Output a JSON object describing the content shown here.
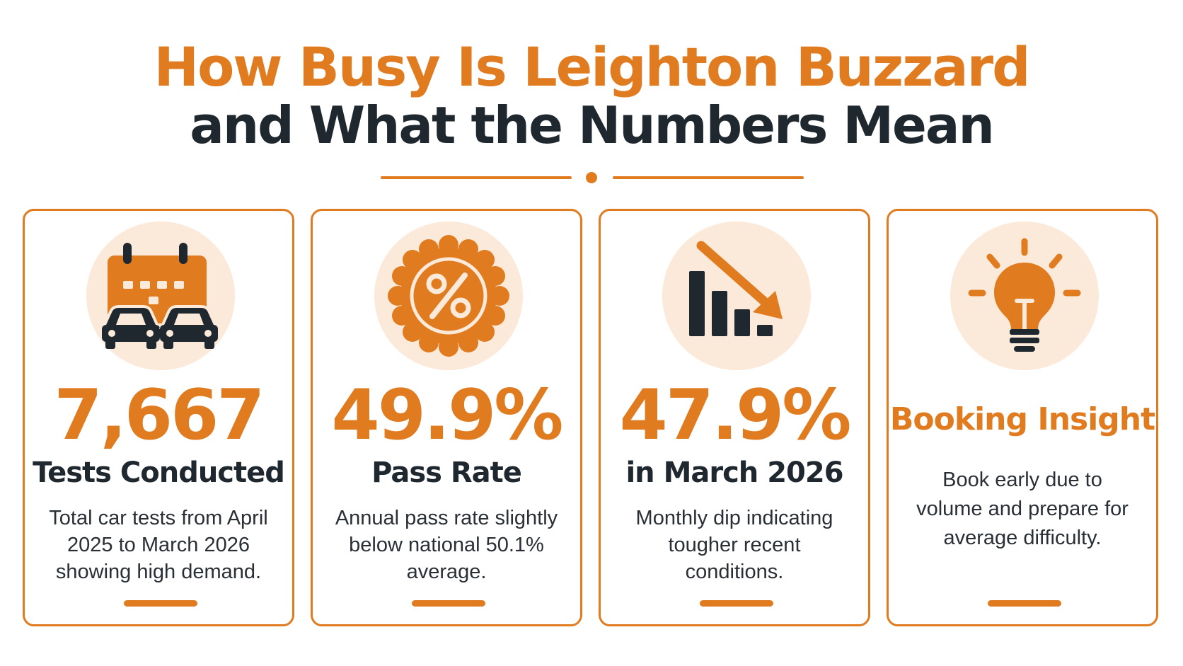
{
  "header": {
    "title_line1": "How Busy Is Leighton Buzzard",
    "title_line2": "and What the Numbers Mean"
  },
  "colors": {
    "accent": "#e07b1f",
    "dark": "#1f272f",
    "icon_bg": "#fbe9da"
  },
  "cards": [
    {
      "icon": "calendar-cars-icon",
      "value": "7,667",
      "label": "Tests Conducted",
      "description": "Total car tests from April 2025 to March 2026 showing high demand."
    },
    {
      "icon": "percent-badge-icon",
      "value": "49.9%",
      "label": "Pass Rate",
      "description": "Annual pass rate slightly below national 50.1% average."
    },
    {
      "icon": "declining-chart-icon",
      "value": "47.9%",
      "label": "in March 2026",
      "description": "Monthly dip indicating tougher recent conditions."
    },
    {
      "icon": "lightbulb-icon",
      "title": "Booking Insight",
      "description": "Book early due to volume and prepare for average difficulty."
    }
  ]
}
